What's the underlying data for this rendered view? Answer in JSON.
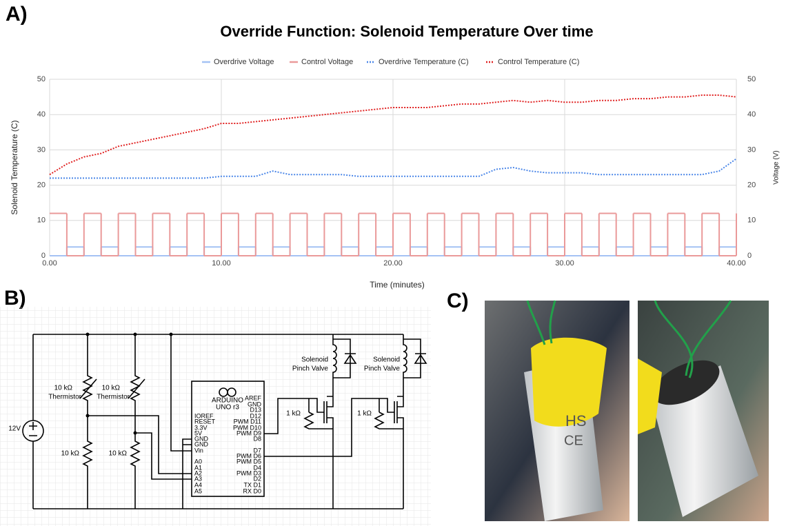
{
  "chart_data": {
    "type": "line",
    "panel_label": "A)",
    "title": "Override Function: Solenoid Temperature Over time",
    "xlabel": "Time (minutes)",
    "ylabel": "Solenoid Temperature (C)",
    "y2label": "Voltage (V)",
    "x": [
      0,
      1,
      2,
      3,
      4,
      5,
      6,
      7,
      8,
      9,
      10,
      11,
      12,
      13,
      14,
      15,
      16,
      17,
      18,
      19,
      20,
      21,
      22,
      23,
      24,
      25,
      26,
      27,
      28,
      29,
      30,
      31,
      32,
      33,
      34,
      35,
      36,
      37,
      38,
      39,
      40
    ],
    "series": [
      {
        "name": "Overdrive Voltage",
        "color": "#a4c2f4",
        "style": "solid",
        "step": true,
        "axis": "y2",
        "values": [
          0,
          2.5,
          0,
          2.5,
          0,
          2.5,
          0,
          2.5,
          0,
          2.5,
          0,
          2.5,
          0,
          2.5,
          0,
          2.5,
          0,
          2.5,
          0,
          2.5,
          0,
          2.5,
          0,
          2.5,
          0,
          2.5,
          0,
          2.5,
          0,
          2.5,
          0,
          2.5,
          0,
          2.5,
          0,
          2.5,
          0,
          2.5,
          0,
          2.5,
          0
        ]
      },
      {
        "name": "Control Voltage",
        "color": "#ea9999",
        "style": "solid",
        "step": true,
        "axis": "y2",
        "values": [
          12,
          0,
          12,
          0,
          12,
          0,
          12,
          0,
          12,
          0,
          12,
          0,
          12,
          0,
          12,
          0,
          12,
          0,
          12,
          0,
          12,
          0,
          12,
          0,
          12,
          0,
          12,
          0,
          12,
          0,
          12,
          0,
          12,
          0,
          12,
          0,
          12,
          0,
          12,
          0,
          12
        ]
      },
      {
        "name": "Overdrive Temperature (C)",
        "color": "#4a86e8",
        "style": "dotted",
        "step": false,
        "values": [
          22,
          22,
          22,
          22,
          22,
          22,
          22,
          22,
          22,
          22,
          22.5,
          22.5,
          22.5,
          24,
          23,
          23,
          23,
          23,
          22.5,
          22.5,
          22.5,
          22.5,
          22.5,
          22.5,
          22.5,
          22.5,
          24.5,
          25,
          24,
          23.5,
          23.5,
          23.5,
          23,
          23,
          23,
          23,
          23,
          23,
          23,
          24,
          27.5
        ]
      },
      {
        "name": "Control Temperature (C)",
        "color": "#e02020",
        "style": "dotted",
        "step": false,
        "values": [
          23,
          26,
          28,
          29,
          31,
          32,
          33,
          34,
          35,
          36,
          37.5,
          37.5,
          38,
          38.5,
          39,
          39.5,
          40,
          40.5,
          41,
          41.5,
          42,
          42,
          42,
          42.5,
          43,
          43,
          43.5,
          44,
          43.5,
          44,
          43.5,
          43.5,
          44,
          44,
          44.5,
          44.5,
          45,
          45,
          45.5,
          45.5,
          45
        ]
      }
    ],
    "xlim": [
      0,
      40
    ],
    "xticks": [
      {
        "value": 0,
        "label": "0.00"
      },
      {
        "value": 10,
        "label": "10.00"
      },
      {
        "value": 20,
        "label": "20.00"
      },
      {
        "value": 30,
        "label": "30.00"
      },
      {
        "value": 40,
        "label": "40.00"
      }
    ],
    "ylim": [
      0,
      50
    ],
    "yticks": [
      0,
      10,
      20,
      30,
      40,
      50
    ],
    "y2lim": [
      0,
      50
    ],
    "y2ticks": [
      0,
      10,
      20,
      30,
      40,
      50
    ],
    "grid": true,
    "legend": "top"
  },
  "diagram": {
    "label": "B)",
    "supply": "12V",
    "thermistor_resistors": [
      "10 kΩ",
      "10 kΩ"
    ],
    "thermistors": [
      "Thermistor",
      "Thermistor"
    ],
    "divider_resistors": [
      "10 kΩ",
      "10 kΩ"
    ],
    "valves": [
      [
        "Solenoid",
        "Pinch Valve"
      ],
      [
        "Solenoid",
        "Pinch Valve"
      ]
    ],
    "gate_resistors": [
      "1 kΩ",
      "1 kΩ"
    ],
    "board": {
      "name": "ARDUINO",
      "model": "UNO r3",
      "left_pins": [
        "IOREF",
        "RESET",
        "3.3V",
        "5V",
        "GND",
        "GND",
        "Vin",
        "A0",
        "A1",
        "A2",
        "A3",
        "A4",
        "A5"
      ],
      "right_pins": [
        "AREF",
        "GND",
        "D13",
        "D12",
        "PWM D11",
        "PWM D10",
        "PWM D9",
        "D8",
        "D7",
        "PWM D6",
        "PWM D5",
        "D4",
        "PWM D3",
        "D2",
        "TX D1",
        "RX D0"
      ]
    }
  },
  "photos": {
    "label": "C)",
    "texts": [
      "HS",
      "CE"
    ]
  }
}
